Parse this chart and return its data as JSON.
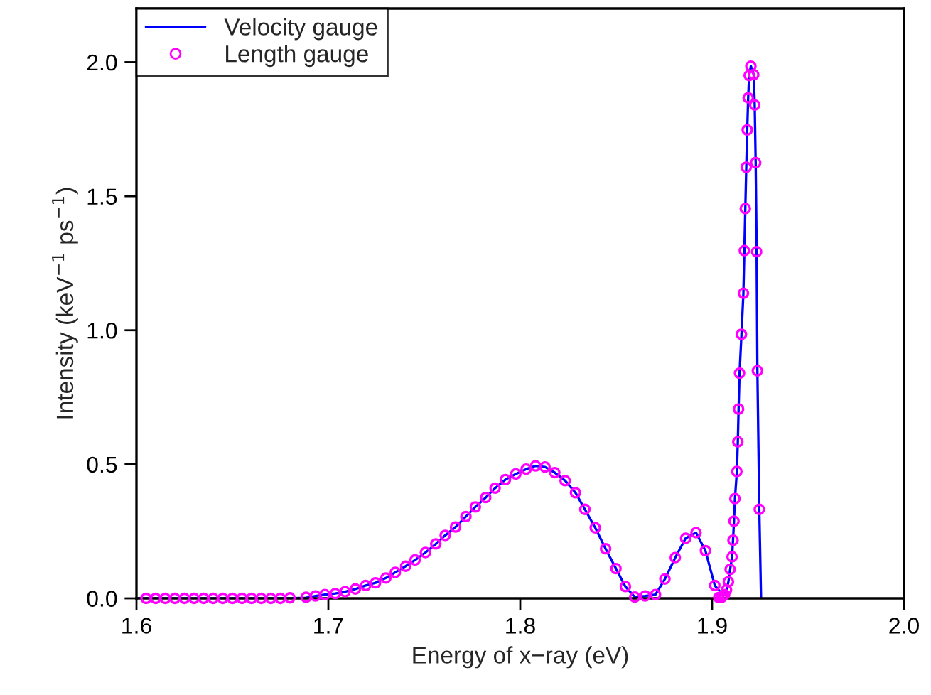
{
  "chart_data": {
    "type": "line",
    "xlabel": "Energy of x−ray (eV)",
    "ylabel": "Intensity (keV$^{−1}$ ps$^{−1}$)",
    "xlim": [
      1.6,
      2.0
    ],
    "ylim": [
      0,
      2.2
    ],
    "xticks": [
      {
        "value": 1.6,
        "label": "1.6"
      },
      {
        "value": 1.7,
        "label": "1.7"
      },
      {
        "value": 1.8,
        "label": "1.8"
      },
      {
        "value": 1.9,
        "label": "1.9"
      },
      {
        "value": 2.0,
        "label": "2.0"
      }
    ],
    "yticks": [
      {
        "value": 0,
        "label": "0.0"
      },
      {
        "value": 0.5,
        "label": "0.5"
      },
      {
        "value": 1.0,
        "label": "1.0"
      },
      {
        "value": 1.5,
        "label": "1.5"
      },
      {
        "value": 2.0,
        "label": "2.0"
      }
    ],
    "legend": "top left",
    "grid": false,
    "series": [
      {
        "name": "Velocity gauge",
        "color": "#0000ff",
        "marker": "none",
        "line_style": "solid",
        "x": [
          1.6,
          1.68,
          1.6884,
          1.6933,
          1.6982,
          1.7036,
          1.7087,
          1.7141,
          1.7195,
          1.7246,
          1.73,
          1.7349,
          1.7403,
          1.7452,
          1.7506,
          1.756,
          1.7609,
          1.7663,
          1.7717,
          1.7766,
          1.782,
          1.7869,
          1.7923,
          1.7977,
          1.8031,
          1.808,
          1.8129,
          1.818,
          1.8234,
          1.8288,
          1.8337,
          1.8391,
          1.8445,
          1.8499,
          1.8548,
          1.8597,
          1.8651,
          1.8705,
          1.8754,
          1.8808,
          1.8862,
          1.8916,
          1.8965,
          1.9014,
          1.9058,
          1.9065,
          1.9075,
          1.9085,
          1.9094,
          1.9104,
          1.9109,
          1.9114,
          1.9119,
          1.9129,
          1.9134,
          1.9138,
          1.9143,
          1.9153,
          1.9163,
          1.9168,
          1.9173,
          1.9178,
          1.9183,
          1.9188,
          1.9193,
          1.9202,
          1.9217,
          1.9222,
          1.9227,
          1.9232,
          1.9236,
          1.9246,
          1.9255
        ],
        "values": [
          0,
          0,
          0.002,
          0.009,
          0.014,
          0.018,
          0.025,
          0.035,
          0.048,
          0.058,
          0.076,
          0.097,
          0.12,
          0.143,
          0.171,
          0.203,
          0.235,
          0.266,
          0.305,
          0.341,
          0.376,
          0.411,
          0.443,
          0.464,
          0.482,
          0.494,
          0.49,
          0.469,
          0.439,
          0.394,
          0.332,
          0.263,
          0.185,
          0.111,
          0.044,
          0.005,
          0.009,
          0.014,
          0.072,
          0.152,
          0.224,
          0.245,
          0.178,
          0.048,
          0.011,
          0.014,
          0.032,
          0.062,
          0.108,
          0.155,
          0.217,
          0.288,
          0.372,
          0.473,
          0.584,
          0.706,
          0.84,
          0.985,
          1.138,
          1.297,
          1.454,
          1.608,
          1.747,
          1.867,
          1.95,
          1.985,
          1.953,
          1.84,
          1.625,
          1.293,
          0.849,
          0.332,
          0
        ]
      },
      {
        "name": "Length gauge",
        "type": "scatter",
        "color": "#ff00ff",
        "marker": "circle",
        "x": [
          1.605,
          1.61,
          1.615,
          1.62,
          1.625,
          1.63,
          1.635,
          1.64,
          1.645,
          1.65,
          1.655,
          1.66,
          1.665,
          1.67,
          1.675,
          1.68,
          1.6884,
          1.6933,
          1.6982,
          1.7036,
          1.7087,
          1.7141,
          1.7195,
          1.7246,
          1.73,
          1.7349,
          1.7403,
          1.7452,
          1.7506,
          1.756,
          1.7609,
          1.7663,
          1.7717,
          1.7766,
          1.782,
          1.7869,
          1.7923,
          1.7977,
          1.8031,
          1.808,
          1.8129,
          1.818,
          1.8234,
          1.8288,
          1.8337,
          1.8391,
          1.8445,
          1.8499,
          1.8548,
          1.8597,
          1.8651,
          1.8705,
          1.8754,
          1.8808,
          1.8862,
          1.8916,
          1.8965,
          1.9014,
          1.9035,
          1.905,
          1.9058,
          1.9065,
          1.9075,
          1.9085,
          1.9094,
          1.9104,
          1.9109,
          1.9114,
          1.9119,
          1.9129,
          1.9134,
          1.9138,
          1.9143,
          1.9153,
          1.9163,
          1.9168,
          1.9173,
          1.9178,
          1.9183,
          1.9188,
          1.9193,
          1.9202,
          1.9217,
          1.9222,
          1.9227,
          1.9232,
          1.9236,
          1.9246
        ],
        "values": [
          0,
          0,
          0,
          0,
          0,
          0,
          0,
          0,
          0,
          0,
          0,
          0,
          0,
          0,
          0,
          0.002,
          0.004,
          0.009,
          0.014,
          0.018,
          0.025,
          0.035,
          0.048,
          0.058,
          0.076,
          0.097,
          0.12,
          0.143,
          0.171,
          0.203,
          0.235,
          0.266,
          0.305,
          0.341,
          0.376,
          0.411,
          0.443,
          0.464,
          0.482,
          0.494,
          0.49,
          0.469,
          0.439,
          0.394,
          0.332,
          0.263,
          0.185,
          0.111,
          0.044,
          0.005,
          0.009,
          0.014,
          0.072,
          0.152,
          0.224,
          0.245,
          0.178,
          0.048,
          0.003,
          0.004,
          0.011,
          0.014,
          0.032,
          0.062,
          0.108,
          0.155,
          0.217,
          0.288,
          0.372,
          0.473,
          0.584,
          0.706,
          0.84,
          0.985,
          1.138,
          1.297,
          1.454,
          1.608,
          1.747,
          1.867,
          1.95,
          1.985,
          1.953,
          1.84,
          1.625,
          1.293,
          0.849,
          0.332
        ]
      }
    ]
  }
}
